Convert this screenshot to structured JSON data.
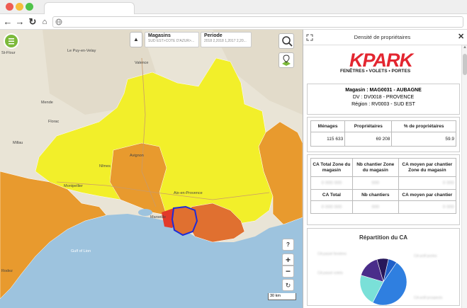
{
  "browser": {
    "colors": {
      "close": "#ee5c53",
      "minimize": "#f6bd3b",
      "maximize": "#4fc34a"
    }
  },
  "map": {
    "filters": [
      {
        "label": "Magasins",
        "value": "SUD EST>COTE D'AZUR>..."
      },
      {
        "label": "Periode",
        "value": "2018 2,2018 1,2017 2,20..."
      }
    ],
    "place_labels": [
      "St-Flour",
      "Le Puy-en-Velay",
      "Valence",
      "Mende",
      "Florac",
      "Millau",
      "Nîmes",
      "Montpellier",
      "Avignon",
      "Aix-en-Provence",
      "Marseille",
      "Gulf of Lion",
      "Rodez"
    ],
    "scale_label": "30 km",
    "buttons": {
      "help": "?",
      "zoom_in": "+",
      "zoom_out": "−",
      "reset": "↻"
    },
    "colors": {
      "sea": "#9dc3de",
      "yellow": "#f2ef2a",
      "orange": "#e89a2e",
      "dark_orange": "#e07030",
      "red": "#e23a2a",
      "highlight_border": "#1d2bd8"
    }
  },
  "panel": {
    "title": "Densité de propriétaires",
    "logo": {
      "brand": "KPARK",
      "tagline": "FENÊTRES • VOLETS • PORTES"
    },
    "store_info": {
      "magasin": "Magasin : MAG0031 - AUBAGNE",
      "dv": "DV : DV0018 - PROVENCE",
      "region": "Région : RV0003 - SUD EST"
    },
    "table1": {
      "headers": [
        "Ménages",
        "Propriétaires",
        "% de propriétaires"
      ],
      "row": [
        "115 633",
        "69 208",
        "59.9"
      ]
    },
    "table2": {
      "headers1": [
        "CA Total Zone du magasin",
        "Nb chantier Zone du magasin",
        "CA moyen par chantier Zone du magasin"
      ],
      "headers2": [
        "CA Total",
        "Nb chantiers",
        "CA moyen par chantier"
      ]
    },
    "chart_title": "Répartition du CA"
  },
  "chart_data": {
    "type": "pie",
    "title": "Répartition du CA",
    "values": [
      48,
      22,
      16,
      8,
      6
    ],
    "colors": [
      "#2f7fe0",
      "#7ae0d8",
      "#4a2d8a",
      "#27175a",
      "#1f5fc8"
    ]
  }
}
